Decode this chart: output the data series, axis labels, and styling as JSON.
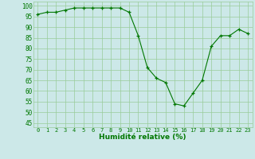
{
  "x": [
    0,
    1,
    2,
    3,
    4,
    5,
    6,
    7,
    8,
    9,
    10,
    11,
    12,
    13,
    14,
    15,
    16,
    17,
    18,
    19,
    20,
    21,
    22,
    23
  ],
  "y": [
    96,
    97,
    97,
    98,
    99,
    99,
    99,
    99,
    99,
    99,
    97,
    86,
    71,
    66,
    64,
    54,
    53,
    59,
    65,
    81,
    86,
    86,
    89,
    87
  ],
  "line_color": "#007700",
  "marker": "+",
  "marker_color": "#007700",
  "bg_color": "#cce8e8",
  "grid_color": "#99cc99",
  "xlabel": "Humidité relative (%)",
  "xlabel_color": "#007700",
  "ylabel_ticks": [
    45,
    50,
    55,
    60,
    65,
    70,
    75,
    80,
    85,
    90,
    95,
    100
  ],
  "ylim": [
    43,
    102
  ],
  "xlim": [
    -0.5,
    23.5
  ],
  "tick_color": "#007700",
  "xtick_fontsize": 5.0,
  "ytick_fontsize": 5.5,
  "xlabel_fontsize": 6.5
}
